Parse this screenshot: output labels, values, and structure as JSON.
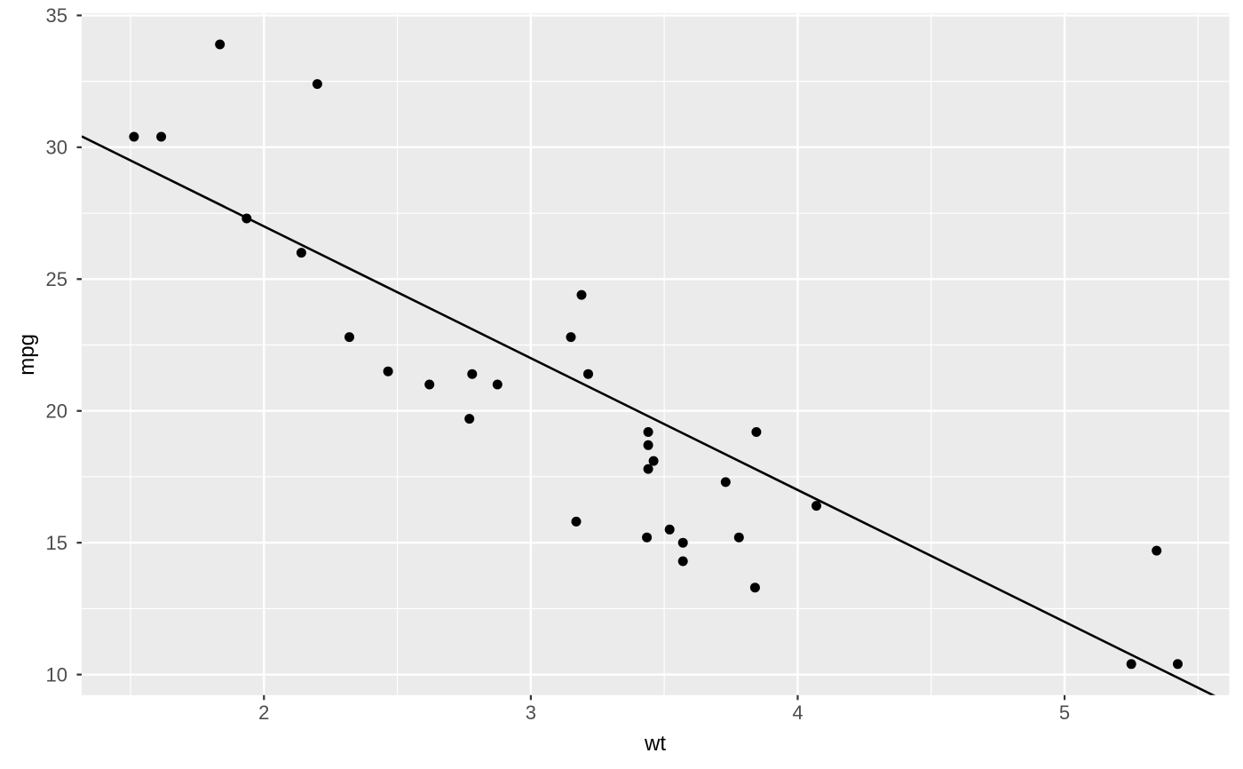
{
  "figure": {
    "background_color": "#FFFFFF"
  },
  "chart_data": {
    "type": "scatter",
    "title": "",
    "xlabel": "wt",
    "ylabel": "mpg",
    "x_ticks": [
      2,
      3,
      4,
      5
    ],
    "y_ticks": [
      10,
      15,
      20,
      25,
      30,
      35
    ],
    "x_minor_gridlines": [
      1.5,
      2.5,
      3.5,
      4.5,
      5.5
    ],
    "y_minor_gridlines": [
      12.5,
      17.5,
      22.5,
      27.5,
      32.5
    ],
    "xlim": [
      1.317,
      5.617
    ],
    "ylim": [
      9.22,
      35.08
    ],
    "grid": "on",
    "legend_position": "none",
    "points_xy": [
      [
        2.62,
        21.0
      ],
      [
        2.875,
        21.0
      ],
      [
        2.32,
        22.8
      ],
      [
        3.215,
        21.4
      ],
      [
        3.44,
        18.7
      ],
      [
        3.46,
        18.1
      ],
      [
        3.57,
        14.3
      ],
      [
        3.19,
        24.4
      ],
      [
        3.15,
        22.8
      ],
      [
        3.44,
        19.2
      ],
      [
        3.44,
        17.8
      ],
      [
        4.07,
        16.4
      ],
      [
        3.73,
        17.3
      ],
      [
        3.78,
        15.2
      ],
      [
        5.25,
        10.4
      ],
      [
        5.424,
        10.4
      ],
      [
        5.345,
        14.7
      ],
      [
        2.2,
        32.4
      ],
      [
        1.615,
        30.4
      ],
      [
        1.835,
        33.9
      ],
      [
        2.465,
        21.5
      ],
      [
        3.52,
        15.5
      ],
      [
        3.435,
        15.2
      ],
      [
        3.84,
        13.3
      ],
      [
        3.845,
        19.2
      ],
      [
        1.935,
        27.3
      ],
      [
        2.14,
        26.0
      ],
      [
        1.513,
        30.4
      ],
      [
        3.17,
        15.8
      ],
      [
        2.77,
        19.7
      ],
      [
        3.57,
        15.0
      ],
      [
        2.78,
        21.4
      ]
    ],
    "trend_line": {
      "type": "linear",
      "intercept": 37,
      "slope": -5
    },
    "style": {
      "panel_background": "#EBEBEB",
      "gridline_color": "#FFFFFF",
      "point_color": "#000000",
      "line_color": "#000000",
      "tick_label_color": "#4D4D4D",
      "tick_mark_color": "#333333",
      "axis_title_color": "#000000"
    }
  }
}
